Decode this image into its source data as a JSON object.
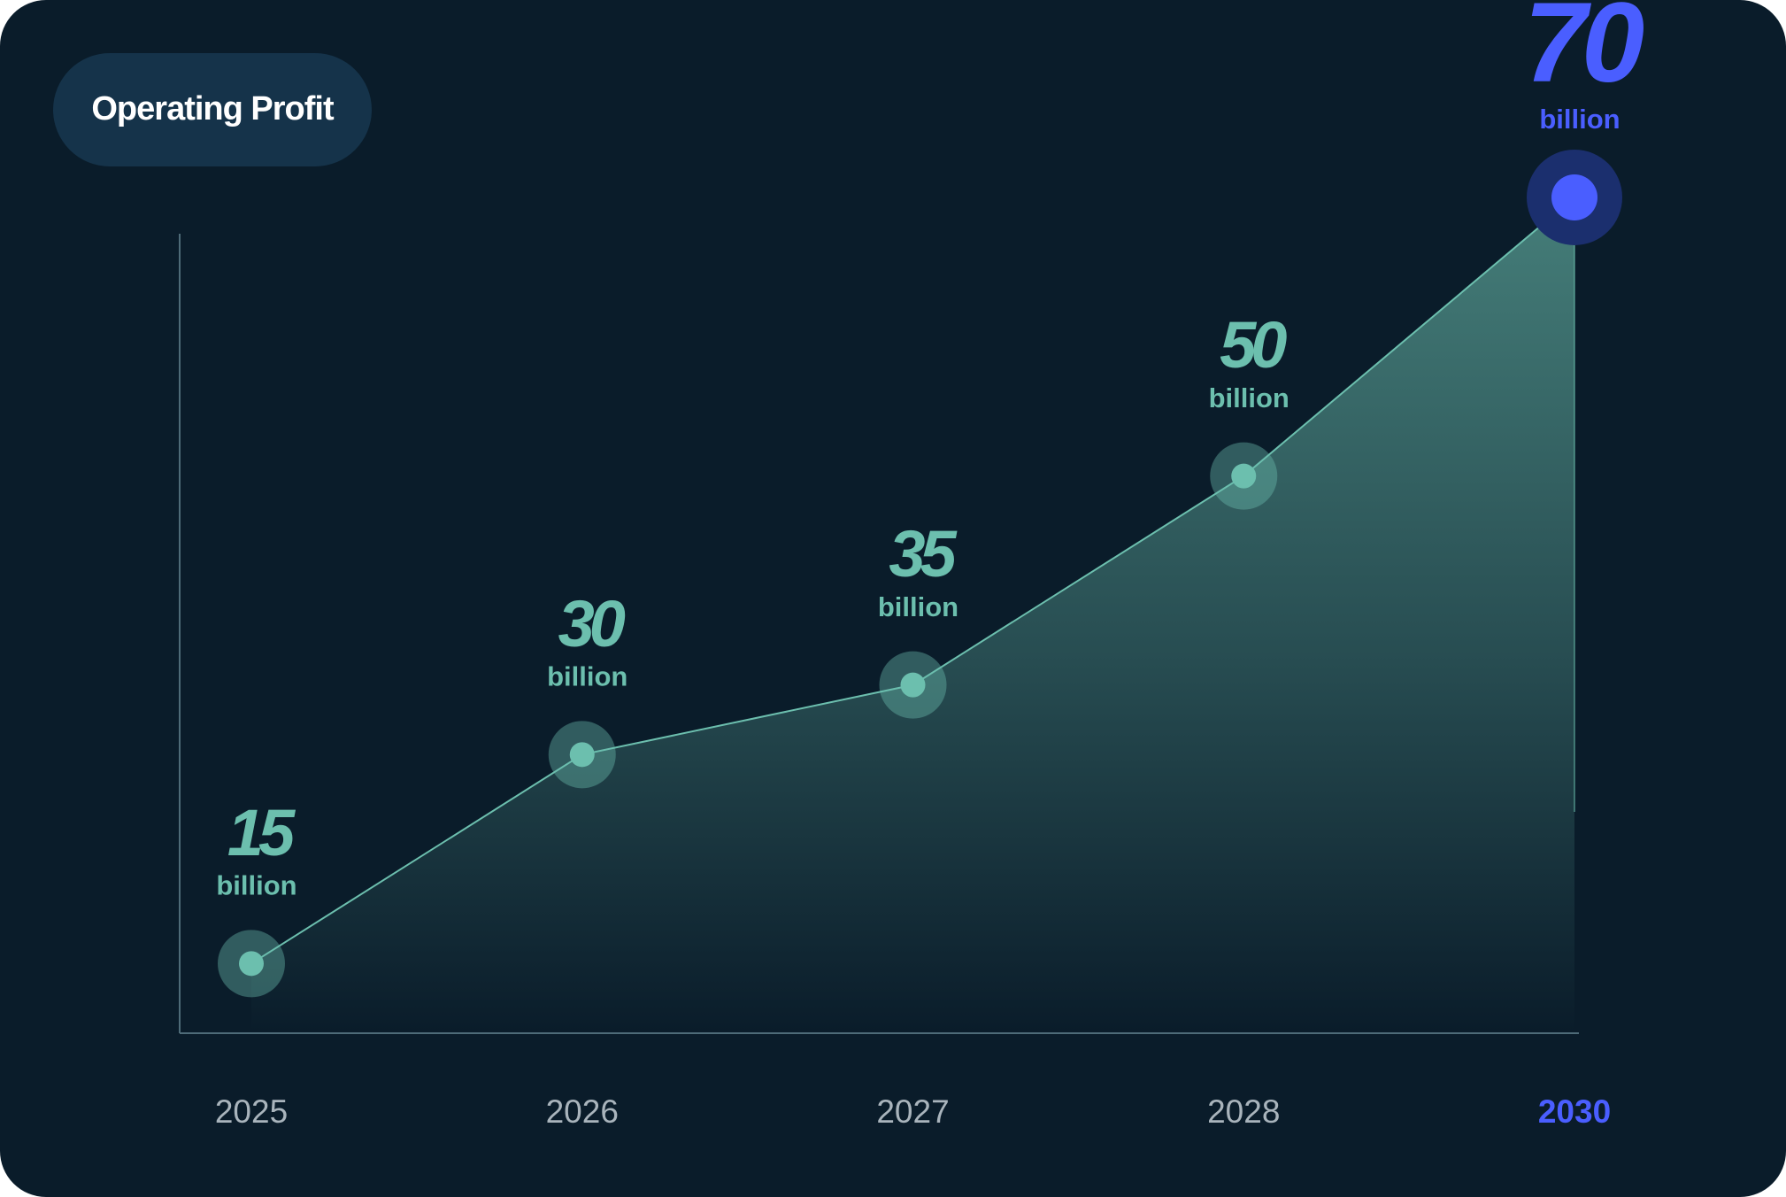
{
  "chart_data": {
    "type": "line",
    "title": "Operating Profit",
    "categories": [
      "2025",
      "2026",
      "2027",
      "2028",
      "2030"
    ],
    "values": [
      15,
      30,
      35,
      50,
      70
    ],
    "unit_label": "billion",
    "color": "#6cbfae",
    "point_colors": [
      "#6cbfae",
      "#6cbfae",
      "#6cbfae",
      "#6cbfae",
      "#4a5eff"
    ],
    "ylim": [
      10,
      72
    ]
  }
}
